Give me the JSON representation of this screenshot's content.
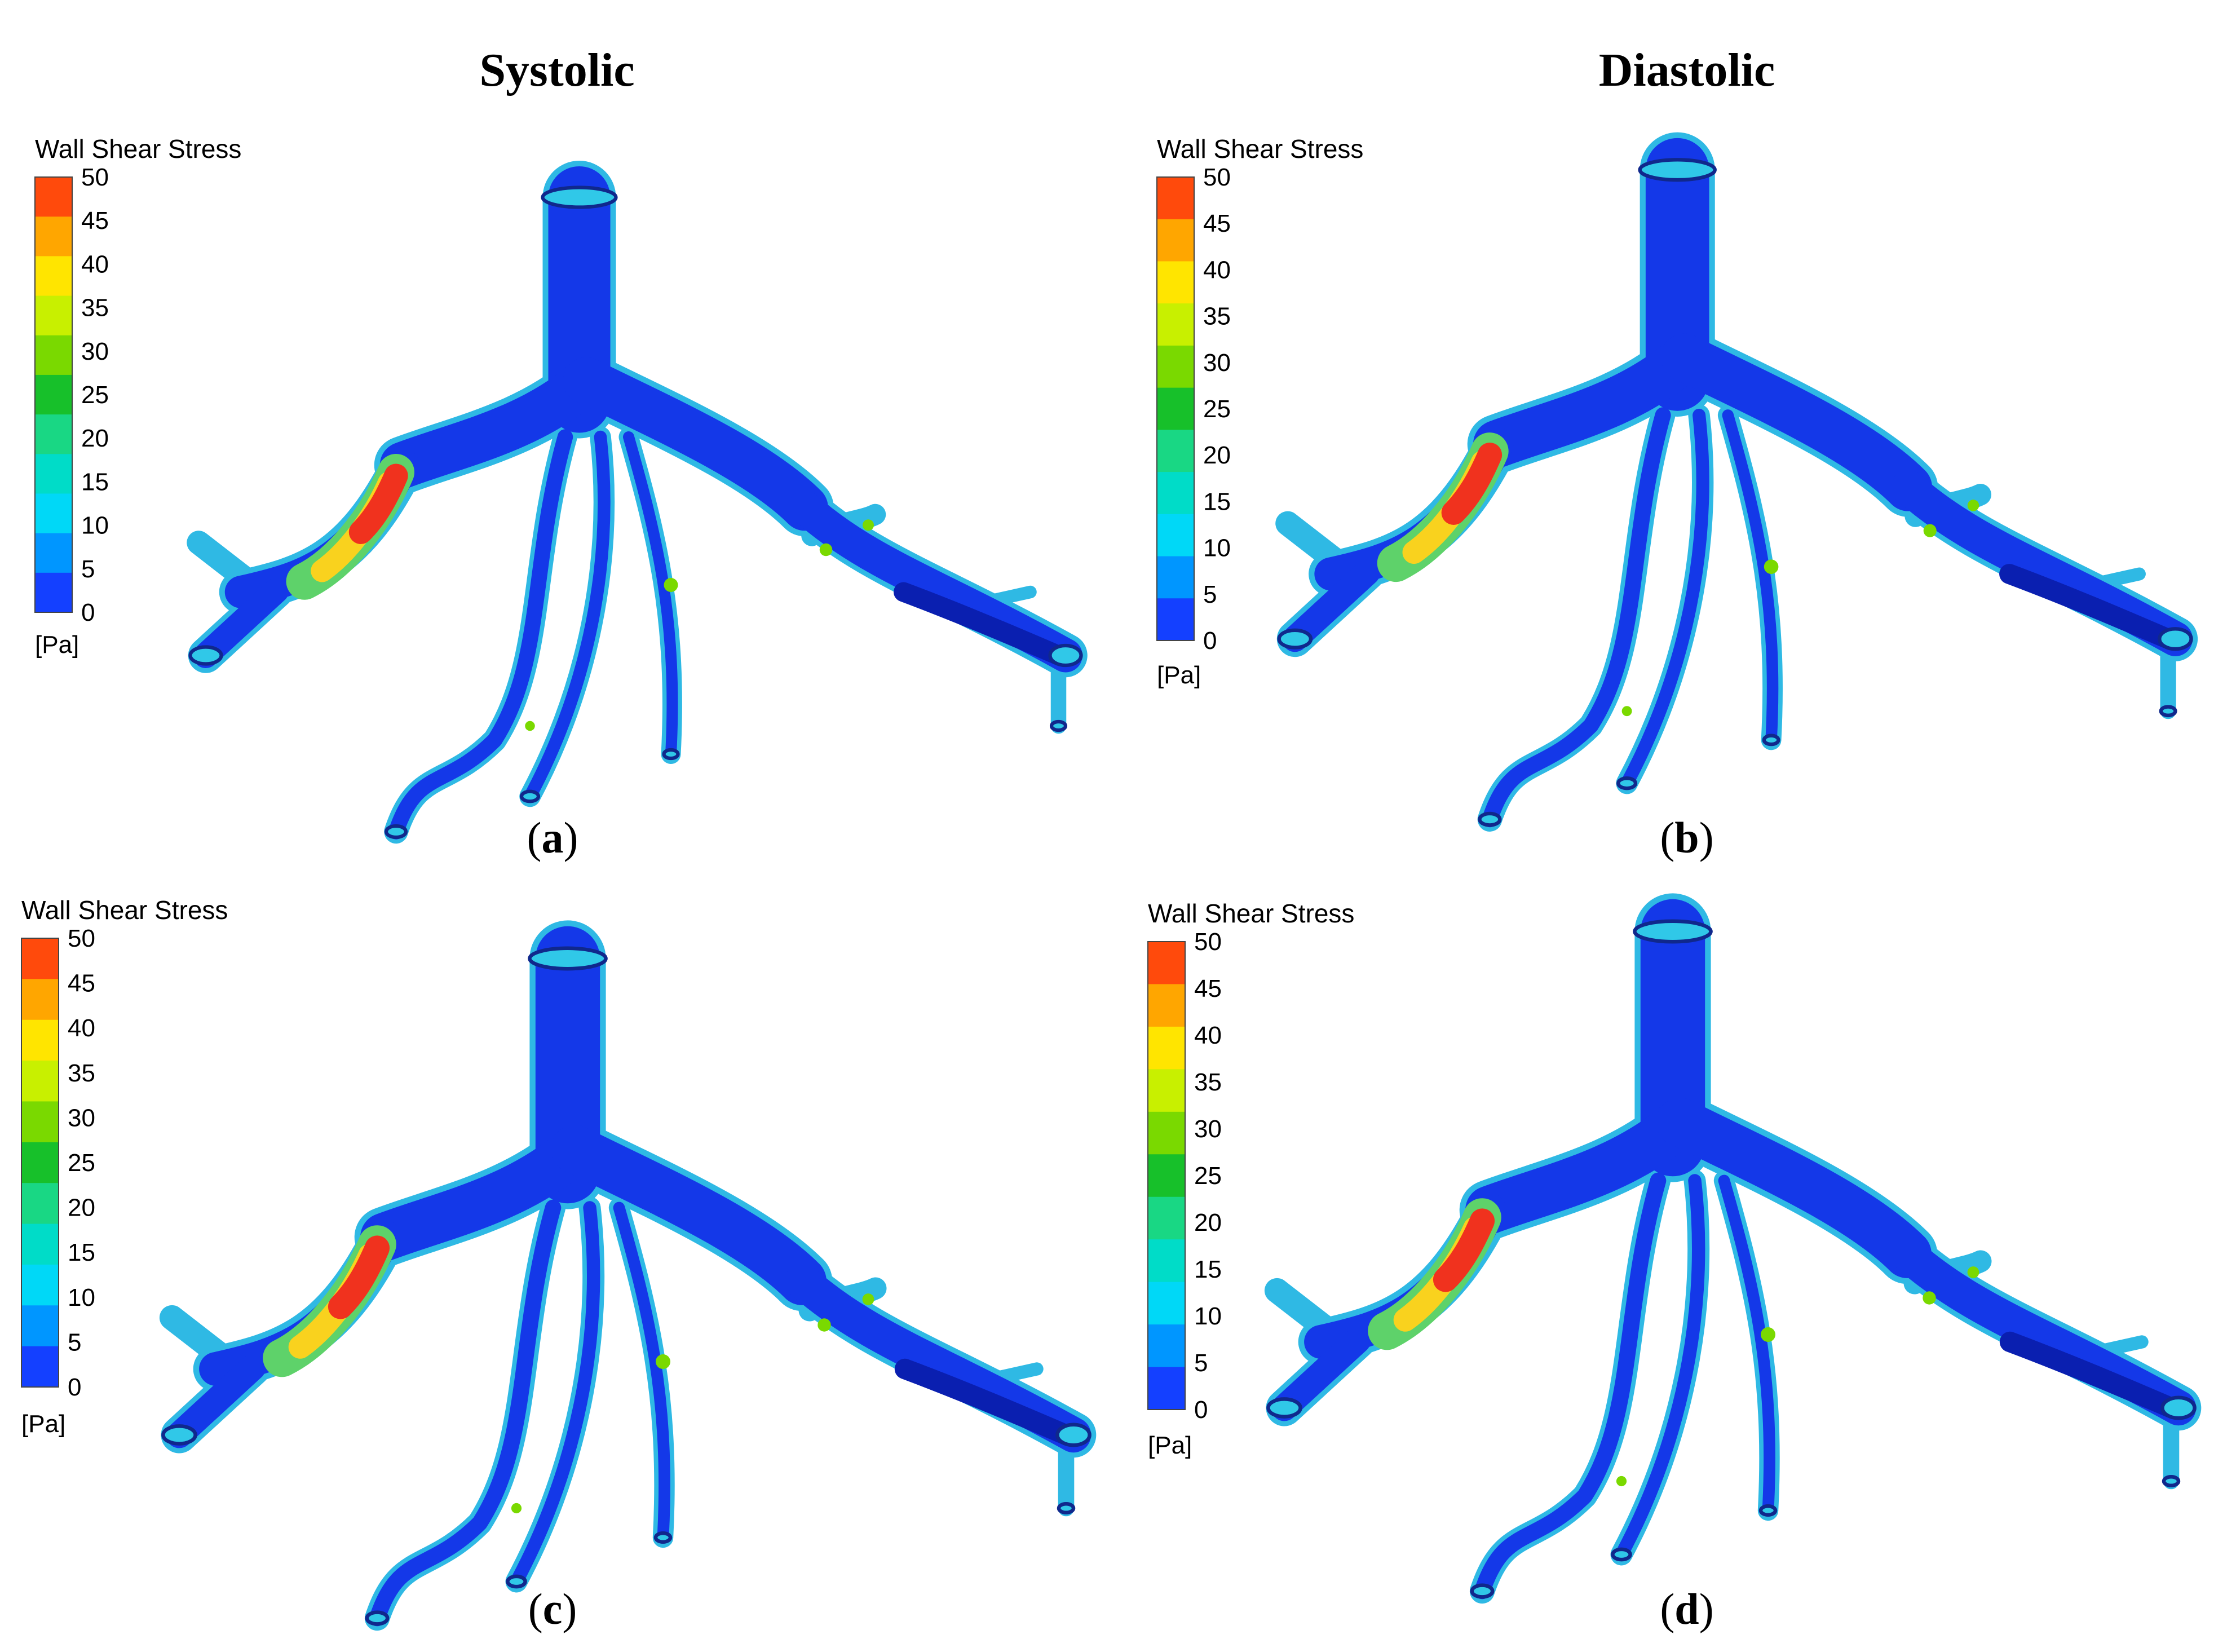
{
  "column_titles": {
    "left": "Systolic",
    "right": "Diastolic"
  },
  "legend": {
    "title": "Wall Shear Stress",
    "unit": "[Pa]",
    "ticks": [
      "50",
      "45",
      "40",
      "35",
      "30",
      "25",
      "20",
      "15",
      "10",
      "5",
      "0"
    ],
    "band_colors": [
      "#ff4a0c",
      "#ffa600",
      "#ffe500",
      "#c8f000",
      "#7ad900",
      "#17c02a",
      "#19d784",
      "#00dcc8",
      "#00d8f7",
      "#0096ff",
      "#1440ff"
    ]
  },
  "colors": {
    "vessel_base": "#1438e8",
    "vessel_light": "#33c9ea",
    "hotspot": "#f0321e",
    "hotspot_glow": "#f9d21e"
  },
  "panels": [
    {
      "id": "a",
      "label": "a",
      "phase": "Systolic"
    },
    {
      "id": "b",
      "label": "b",
      "phase": "Diastolic"
    },
    {
      "id": "c",
      "label": "c",
      "phase": "Systolic"
    },
    {
      "id": "d",
      "label": "d",
      "phase": "Diastolic"
    }
  ]
}
